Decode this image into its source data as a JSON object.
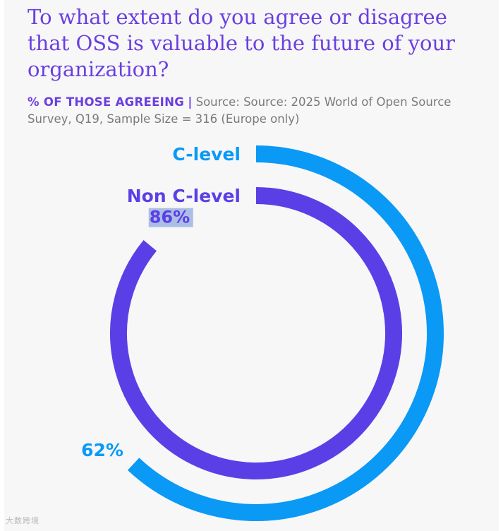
{
  "colors": {
    "c_level": "#0a99f5",
    "non_c_level": "#5b3fe6",
    "title": "#6a3fe0",
    "subtitle": "#7a7a7a"
  },
  "watermark": "大数跨境",
  "chart_data": {
    "type": "radial-bar",
    "title": "To what extent do you agree or disagree that OSS is valuable to the future of your organization?",
    "subtitle_lead": "% OF THOSE AGREEING",
    "subtitle_separator": "|",
    "subtitle_source": "Source: Source: 2025 World of Open Source Survey, Q19, Sample Size = 316 (Europe only)",
    "unit": "%",
    "max": 100,
    "series": [
      {
        "name": "C-level",
        "value": 62,
        "label": "62%",
        "color": "#0a99f5"
      },
      {
        "name": "Non C-level",
        "value": 86,
        "label": "86%",
        "color": "#5b3fe6"
      }
    ]
  }
}
